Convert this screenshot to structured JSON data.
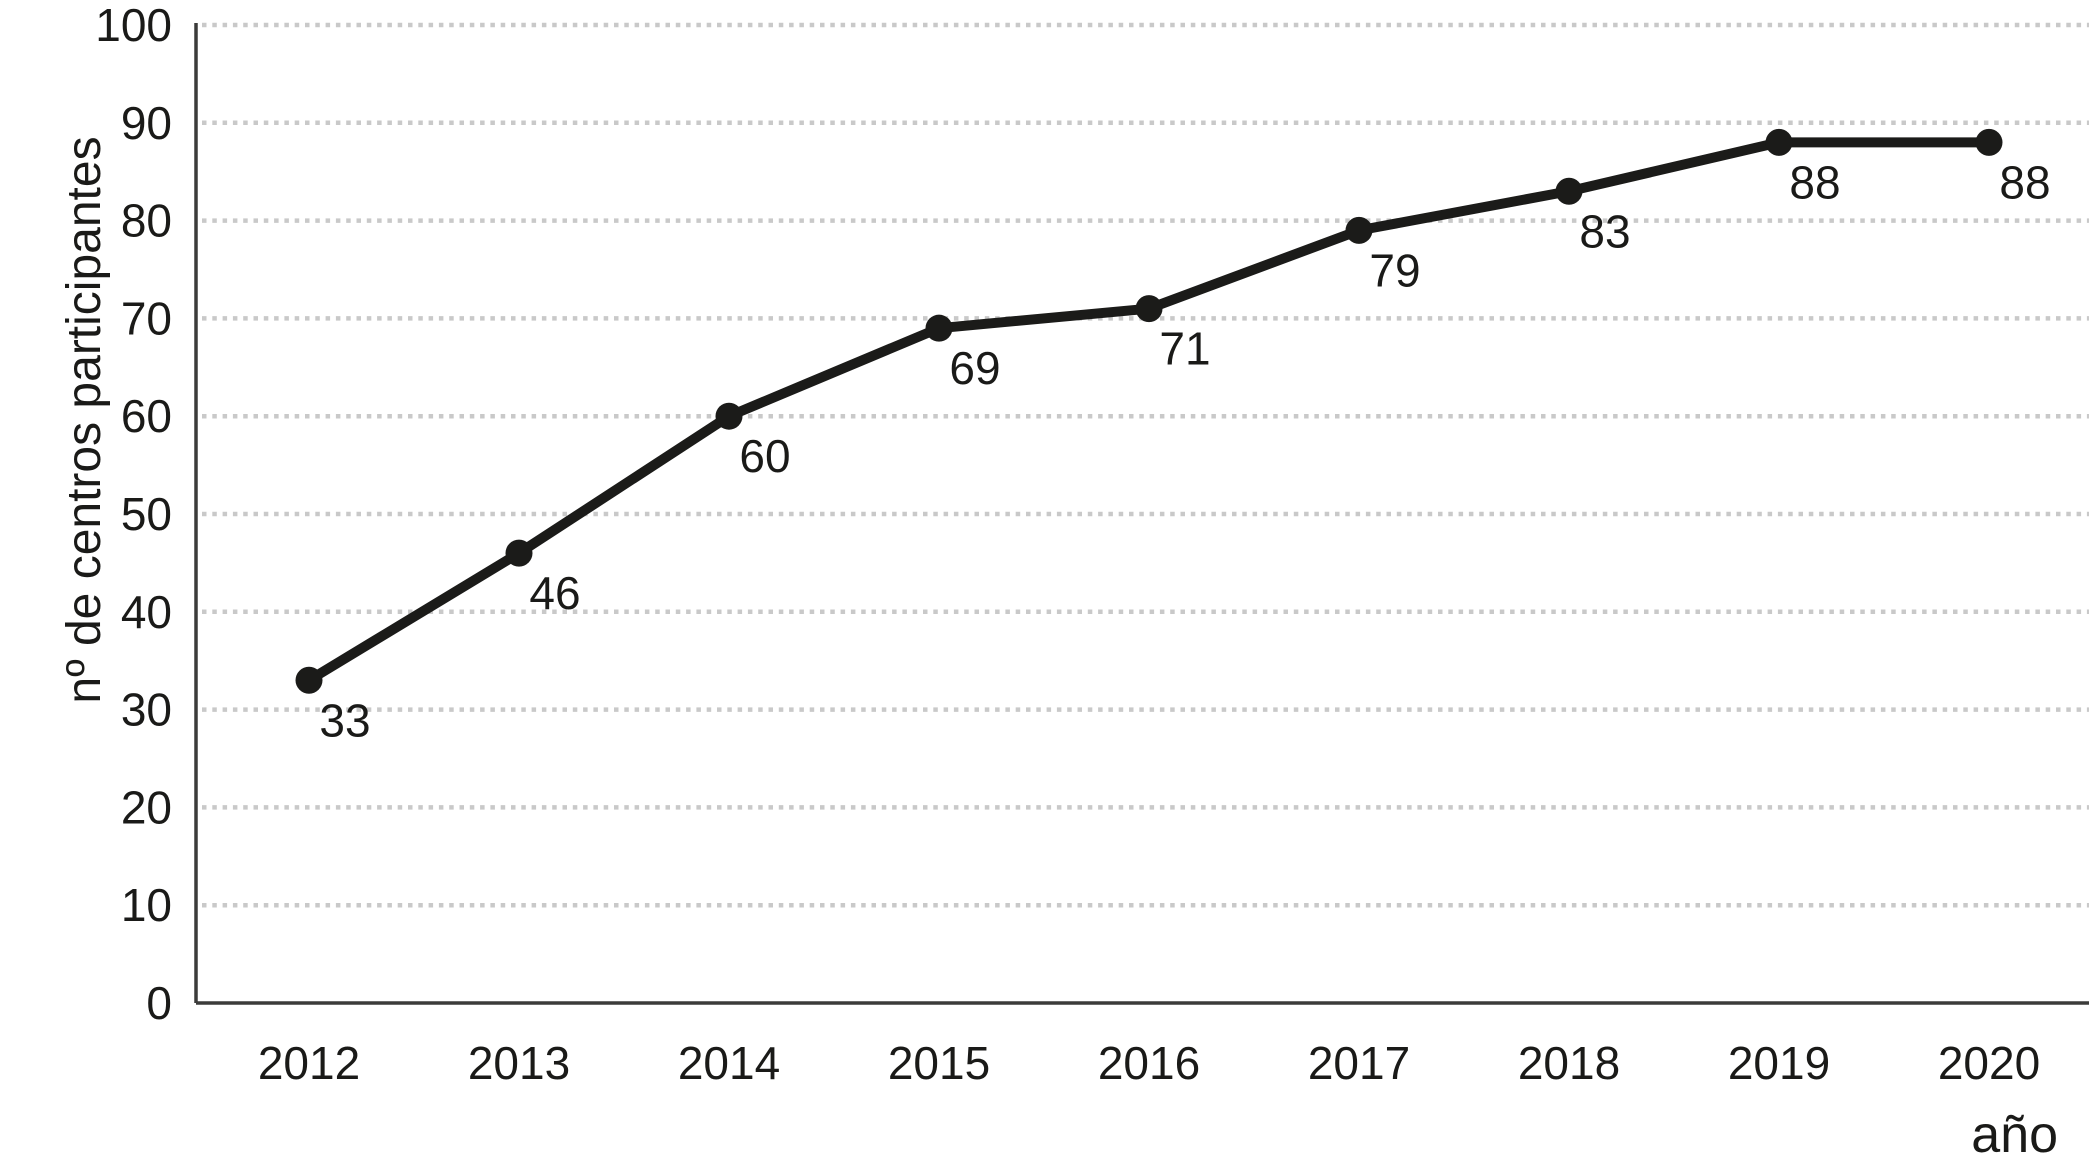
{
  "chart_data": {
    "type": "line",
    "title": "",
    "xlabel": "año",
    "ylabel": "nº de centros participantes",
    "categories": [
      "2012",
      "2013",
      "2014",
      "2015",
      "2016",
      "2017",
      "2018",
      "2019",
      "2020"
    ],
    "values": [
      33,
      46,
      60,
      69,
      71,
      79,
      83,
      88,
      88
    ],
    "point_labels": [
      "33",
      "46",
      "60",
      "69",
      "71",
      "79",
      "83",
      "88",
      "88"
    ],
    "ylim": [
      0,
      100
    ],
    "yticks": [
      0,
      10,
      20,
      30,
      40,
      50,
      60,
      70,
      80,
      90,
      100
    ],
    "grid": {
      "horizontal": true,
      "style": "dotted",
      "color": "#c9c9c9"
    },
    "legend_position": "none",
    "line_color": "#1b1b19",
    "marker": "circle",
    "text_color": "#1a1a18",
    "axis_color": "#3b3b3a",
    "background": "#ffffff"
  }
}
